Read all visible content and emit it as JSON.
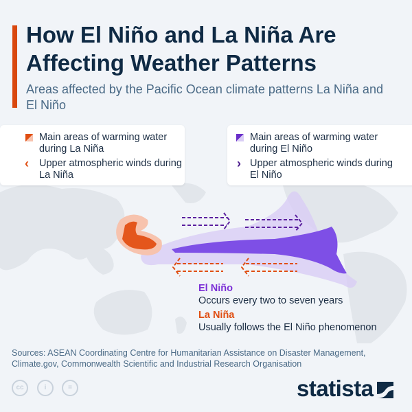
{
  "header": {
    "title": "How El Niño and La Niña Are Affecting Weather Patterns",
    "subtitle": "Areas affected by the Pacific Ocean climate patterns La Niña and El Niño"
  },
  "legend": {
    "la_nina": [
      {
        "icon": "warming-water-swatch-icon",
        "label": "Main areas of warming water during La Niña"
      },
      {
        "icon": "chevron-left-icon",
        "label": "Upper atmospheric winds during La Niña"
      }
    ],
    "el_nino": [
      {
        "icon": "warming-water-swatch-icon",
        "label": "Main areas of warming water during El Niño"
      },
      {
        "icon": "chevron-right-icon",
        "label": "Upper atmospheric winds during El Niño"
      }
    ]
  },
  "notes": {
    "el_nino_title": "El Niño",
    "el_nino_text": "Occurs every two to seven years",
    "la_nina_title": "La Niña",
    "la_nina_text": "Usually follows the El Niño phenomenon"
  },
  "colors": {
    "la_nina": "#e04e12",
    "el_nino": "#7b3fe0",
    "title": "#0f2a44",
    "accent": "#d9480f"
  },
  "footer": {
    "sources": "Sources: ASEAN Coordinating Centre for Humanitarian Assistance on Disaster Management, Climate.gov, Commonwealth Scientific and Industrial Research Organisation",
    "license_icons": [
      "creative-commons-icon",
      "attribution-icon",
      "no-derivatives-icon"
    ],
    "logo": "statista"
  }
}
